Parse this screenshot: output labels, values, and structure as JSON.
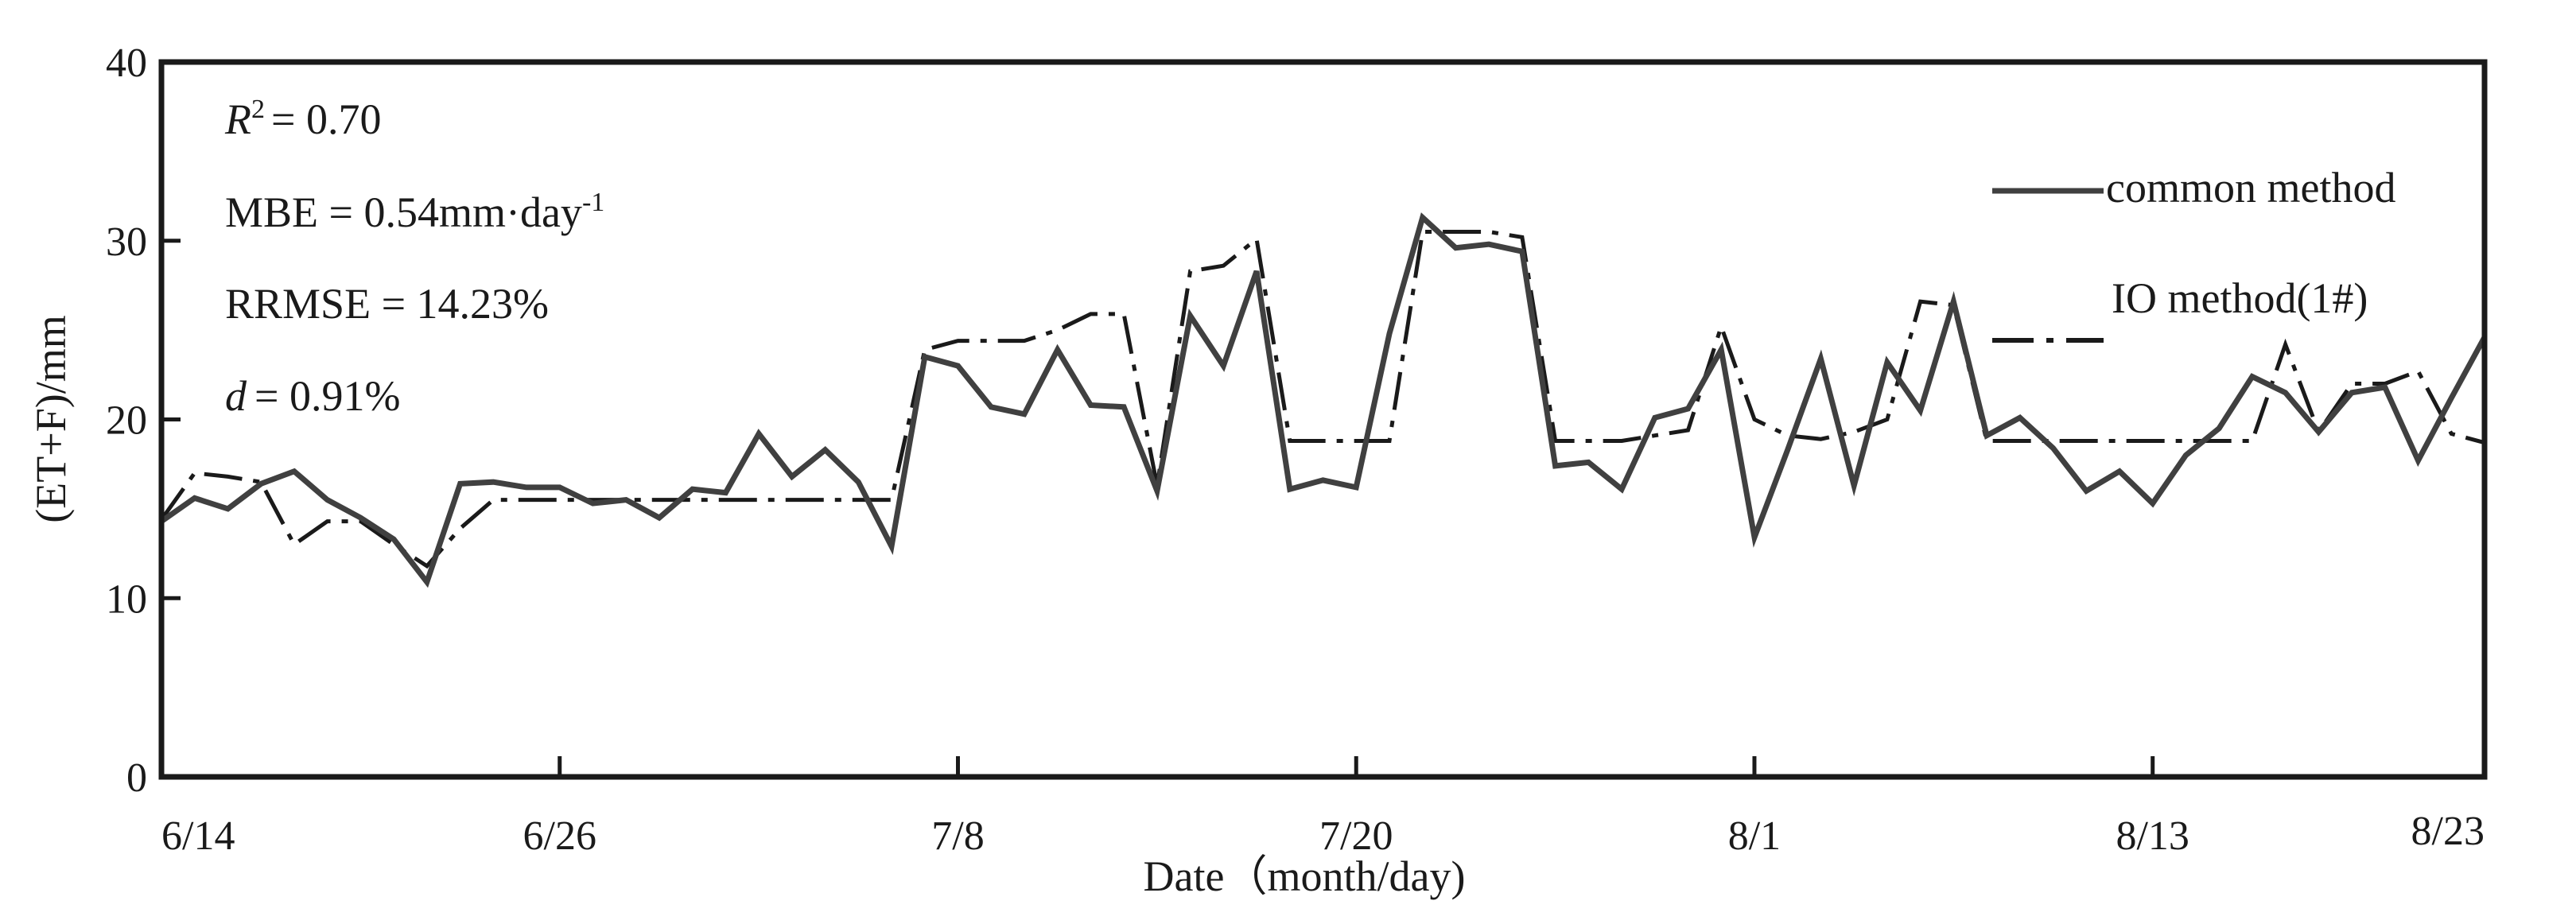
{
  "chart_data": {
    "type": "line",
    "xlabel": "Date（month/day)",
    "ylabel": "(ET+F)/mm",
    "ylim": [
      0,
      40
    ],
    "xlim": [
      0,
      70
    ],
    "grid": false,
    "legend_placement": "top-right",
    "x_ticks": [
      {
        "x": 0,
        "label": "6/14"
      },
      {
        "x": 12,
        "label": "6/26"
      },
      {
        "x": 24,
        "label": "7/8"
      },
      {
        "x": 36,
        "label": "7/20"
      },
      {
        "x": 48,
        "label": "8/1"
      },
      {
        "x": 60,
        "label": "8/13"
      },
      {
        "x": 70,
        "label": "8/23"
      }
    ],
    "y_ticks": [
      {
        "y": 0,
        "label": "0"
      },
      {
        "y": 10,
        "label": "10"
      },
      {
        "y": 20,
        "label": "20"
      },
      {
        "y": 30,
        "label": "30"
      },
      {
        "y": 40,
        "label": "40"
      }
    ],
    "stats": {
      "r2_symbol": "R",
      "r2_sup": "2",
      "r2_value": "= 0.70",
      "mbe_label": "MBE = 0.54mm·day",
      "mbe_sup": "-1",
      "rrmse_label": "RRMSE = 14.23%",
      "d_symbol": "d",
      "d_value": "= 0.91%"
    },
    "series": [
      {
        "name": "common method",
        "style": "solid",
        "color": "#404040",
        "values": [
          14.3,
          15.6,
          15.0,
          16.4,
          17.1,
          15.5,
          14.5,
          13.3,
          10.9,
          16.4,
          16.5,
          16.2,
          16.2,
          15.3,
          15.5,
          14.5,
          16.1,
          15.9,
          19.2,
          16.8,
          18.3,
          16.5,
          12.9,
          23.5,
          23.0,
          20.7,
          20.3,
          23.9,
          20.8,
          20.7,
          16.0,
          25.8,
          23.0,
          28.3,
          16.1,
          16.6,
          16.2,
          24.8,
          31.3,
          29.6,
          29.8,
          29.4,
          17.4,
          17.6,
          16.1,
          20.1,
          20.6,
          23.9,
          13.4,
          18.3,
          23.4,
          16.3,
          23.2,
          20.5,
          26.6,
          19.1,
          20.1,
          18.4,
          16.0,
          17.1,
          15.3,
          18.0,
          19.5,
          22.4,
          21.5,
          19.3,
          21.5,
          21.8,
          17.7,
          21.2,
          24.6
        ]
      },
      {
        "name": "IO method(1#)",
        "style": "dash-dot",
        "color": "#1a1a1a",
        "values": [
          14.4,
          17.0,
          16.8,
          16.5,
          13.0,
          14.3,
          14.3,
          13.0,
          11.8,
          13.9,
          15.5,
          15.5,
          15.5,
          15.5,
          15.5,
          15.5,
          15.5,
          15.5,
          15.5,
          15.5,
          15.5,
          15.5,
          15.5,
          23.9,
          24.4,
          24.4,
          24.4,
          25.0,
          25.9,
          25.9,
          16.3,
          28.3,
          28.6,
          30.1,
          18.8,
          18.8,
          18.8,
          18.8,
          30.5,
          30.5,
          30.5,
          30.2,
          18.8,
          18.8,
          18.8,
          19.1,
          19.4,
          25.2,
          20.0,
          19.1,
          18.9,
          19.3,
          20.0,
          26.6,
          26.4,
          18.8,
          18.8,
          18.8,
          18.8,
          18.8,
          18.8,
          18.8,
          18.8,
          18.8,
          24.2,
          19.3,
          22.0,
          22.0,
          22.7,
          19.2,
          18.7
        ]
      }
    ]
  }
}
